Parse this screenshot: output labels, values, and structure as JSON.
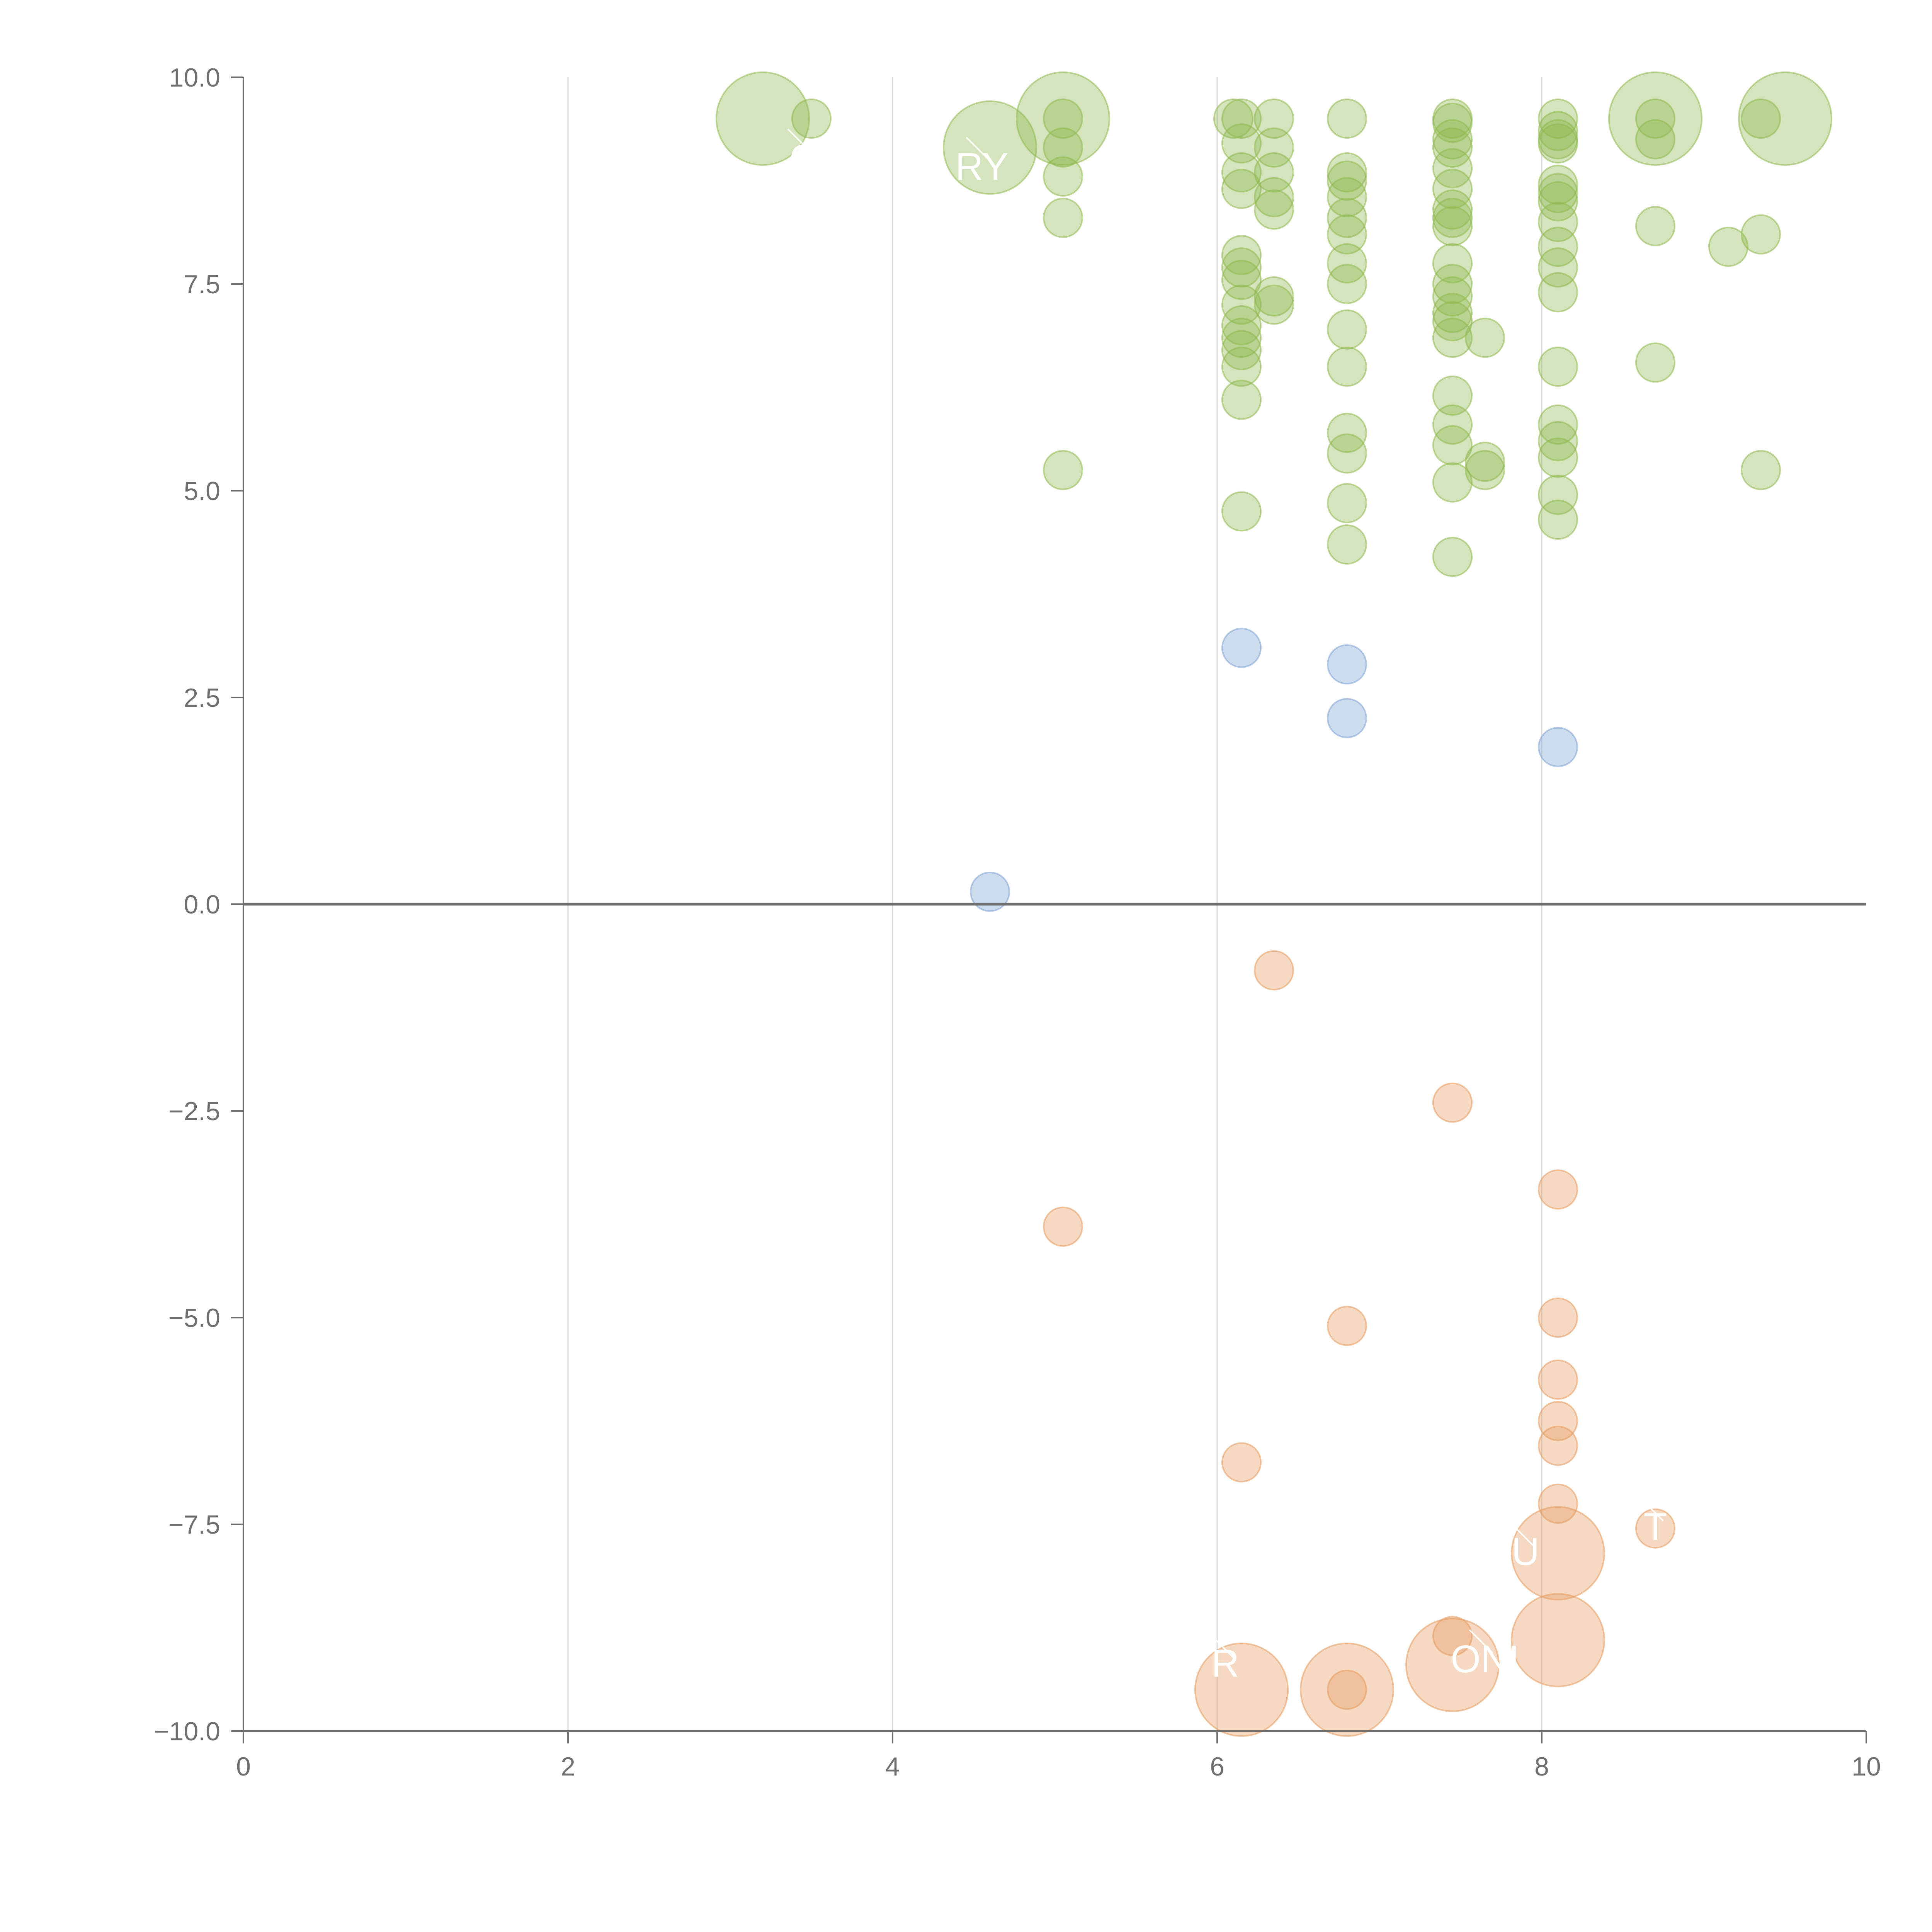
{
  "chart_data": {
    "type": "scatter",
    "title": "",
    "xlabel": "",
    "ylabel": "",
    "xlim": [
      0,
      10
    ],
    "ylim": [
      -10,
      10
    ],
    "x_ticks": [
      0,
      2,
      4,
      6,
      8,
      10
    ],
    "x_tick_labels": [
      "0",
      "2",
      "4",
      "6",
      "8",
      "10"
    ],
    "y_ticks": [
      10,
      7.5,
      5,
      2.5,
      0,
      -2.5,
      -5,
      -7.5,
      -10
    ],
    "y_tick_labels": [
      "10.0",
      "7.5",
      "5.0",
      "2.5",
      "0.0",
      "−2.5",
      "−5.0",
      "−7.5",
      "−10.0"
    ],
    "grid": "vertical",
    "zero_line": true,
    "legend": "none",
    "colors": {
      "green": "#8fb84f",
      "blue": "#7ea3d4",
      "orange": "#e59a5e",
      "axis": "#6f6f6f",
      "grid": "#d9d9d9"
    },
    "series": [
      {
        "color": "green",
        "points": [
          [
            3.2,
            9.5,
            2.4
          ],
          [
            3.5,
            9.5,
            1
          ],
          [
            4.6,
            9.15,
            2.4
          ],
          [
            5.05,
            9.5,
            2.4
          ],
          [
            5.05,
            9.5,
            1
          ],
          [
            5.05,
            9.15,
            1
          ],
          [
            5.05,
            8.8,
            1
          ],
          [
            5.05,
            8.3,
            1
          ],
          [
            5.05,
            5.25,
            1
          ],
          [
            6.1,
            9.5,
            1
          ],
          [
            6.15,
            9.5,
            1
          ],
          [
            6.15,
            9.2,
            1
          ],
          [
            6.15,
            8.85,
            1
          ],
          [
            6.15,
            8.65,
            1
          ],
          [
            6.15,
            7.85,
            1
          ],
          [
            6.15,
            7.7,
            1
          ],
          [
            6.15,
            7.55,
            1
          ],
          [
            6.15,
            7.25,
            1
          ],
          [
            6.15,
            7.0,
            1
          ],
          [
            6.15,
            6.85,
            1
          ],
          [
            6.15,
            6.7,
            1
          ],
          [
            6.15,
            6.5,
            1
          ],
          [
            6.15,
            6.1,
            1
          ],
          [
            6.15,
            4.75,
            1
          ],
          [
            6.35,
            9.5,
            1
          ],
          [
            6.35,
            9.15,
            1
          ],
          [
            6.35,
            8.85,
            1
          ],
          [
            6.35,
            8.55,
            1
          ],
          [
            6.35,
            8.4,
            1
          ],
          [
            6.35,
            7.35,
            1
          ],
          [
            6.35,
            7.25,
            1
          ],
          [
            6.8,
            9.5,
            1
          ],
          [
            6.8,
            8.85,
            1
          ],
          [
            6.8,
            8.75,
            1
          ],
          [
            6.8,
            8.55,
            1
          ],
          [
            6.8,
            8.3,
            1
          ],
          [
            6.8,
            8.1,
            1
          ],
          [
            6.8,
            7.75,
            1
          ],
          [
            6.8,
            7.5,
            1
          ],
          [
            6.8,
            6.95,
            1
          ],
          [
            6.8,
            6.5,
            1
          ],
          [
            6.8,
            5.7,
            1
          ],
          [
            6.8,
            5.45,
            1
          ],
          [
            6.8,
            4.85,
            1
          ],
          [
            6.8,
            4.35,
            1
          ],
          [
            7.45,
            9.5,
            1
          ],
          [
            7.45,
            9.45,
            1
          ],
          [
            7.45,
            9.25,
            1
          ],
          [
            7.45,
            9.15,
            1
          ],
          [
            7.45,
            8.9,
            1
          ],
          [
            7.45,
            8.65,
            1
          ],
          [
            7.45,
            8.4,
            1
          ],
          [
            7.45,
            8.3,
            1
          ],
          [
            7.45,
            8.2,
            1
          ],
          [
            7.45,
            7.75,
            1
          ],
          [
            7.45,
            7.5,
            1
          ],
          [
            7.45,
            7.35,
            1
          ],
          [
            7.45,
            7.15,
            1
          ],
          [
            7.45,
            7.05,
            1
          ],
          [
            7.45,
            6.85,
            1
          ],
          [
            7.45,
            6.15,
            1
          ],
          [
            7.45,
            5.8,
            1
          ],
          [
            7.45,
            5.55,
            1
          ],
          [
            7.45,
            5.1,
            1
          ],
          [
            7.45,
            4.2,
            1
          ],
          [
            7.65,
            6.85,
            1
          ],
          [
            7.65,
            5.35,
            1
          ],
          [
            7.65,
            5.25,
            1
          ],
          [
            8.1,
            9.5,
            1
          ],
          [
            8.1,
            9.35,
            1
          ],
          [
            8.1,
            9.25,
            1
          ],
          [
            8.1,
            9.2,
            1
          ],
          [
            8.1,
            8.7,
            1
          ],
          [
            8.1,
            8.6,
            1
          ],
          [
            8.1,
            8.5,
            1
          ],
          [
            8.1,
            8.25,
            1
          ],
          [
            8.1,
            7.95,
            1
          ],
          [
            8.1,
            7.7,
            1
          ],
          [
            8.1,
            7.4,
            1
          ],
          [
            8.1,
            6.5,
            1
          ],
          [
            8.1,
            5.8,
            1
          ],
          [
            8.1,
            5.6,
            1
          ],
          [
            8.1,
            5.4,
            1
          ],
          [
            8.1,
            4.95,
            1
          ],
          [
            8.1,
            4.65,
            1
          ],
          [
            8.7,
            9.5,
            2.4
          ],
          [
            8.7,
            9.5,
            1
          ],
          [
            8.7,
            9.25,
            1
          ],
          [
            8.7,
            8.2,
            1
          ],
          [
            8.7,
            6.55,
            1
          ],
          [
            9.15,
            7.95,
            1
          ],
          [
            9.35,
            9.5,
            1
          ],
          [
            9.35,
            8.1,
            1
          ],
          [
            9.35,
            5.25,
            1
          ],
          [
            9.5,
            9.5,
            2.4
          ]
        ]
      },
      {
        "color": "blue",
        "points": [
          [
            4.6,
            0.15,
            1
          ],
          [
            6.15,
            3.1,
            1
          ],
          [
            6.8,
            2.9,
            1
          ],
          [
            6.8,
            2.25,
            1
          ],
          [
            8.1,
            1.9,
            1
          ]
        ]
      },
      {
        "color": "orange",
        "points": [
          [
            5.05,
            -3.9,
            1
          ],
          [
            6.15,
            -6.75,
            1
          ],
          [
            6.15,
            -9.5,
            2.4
          ],
          [
            6.35,
            -0.8,
            1
          ],
          [
            6.8,
            -5.1,
            1
          ],
          [
            6.8,
            -9.5,
            2.4
          ],
          [
            6.8,
            -9.5,
            1
          ],
          [
            7.45,
            -2.4,
            1
          ],
          [
            7.45,
            -8.85,
            1
          ],
          [
            7.45,
            -9.2,
            2.4
          ],
          [
            8.1,
            -3.45,
            1
          ],
          [
            8.1,
            -5.0,
            1
          ],
          [
            8.1,
            -5.75,
            1
          ],
          [
            8.1,
            -6.25,
            1
          ],
          [
            8.1,
            -6.55,
            1
          ],
          [
            8.1,
            -7.25,
            1
          ],
          [
            8.1,
            -7.85,
            2.4
          ],
          [
            8.1,
            -8.9,
            2.4
          ],
          [
            8.7,
            -7.55,
            1
          ]
        ]
      }
    ],
    "callouts": [
      {
        "text": "C",
        "x": 3.45,
        "y": 9.0
      },
      {
        "text": "RY",
        "x": 4.55,
        "y": 8.9
      },
      {
        "text": "U",
        "x": 7.9,
        "y": -7.85
      },
      {
        "text": "T",
        "x": 8.7,
        "y": -7.55
      },
      {
        "text": "R",
        "x": 6.05,
        "y": -9.2
      },
      {
        "text": "ONI",
        "x": 7.65,
        "y": -9.15
      }
    ]
  }
}
